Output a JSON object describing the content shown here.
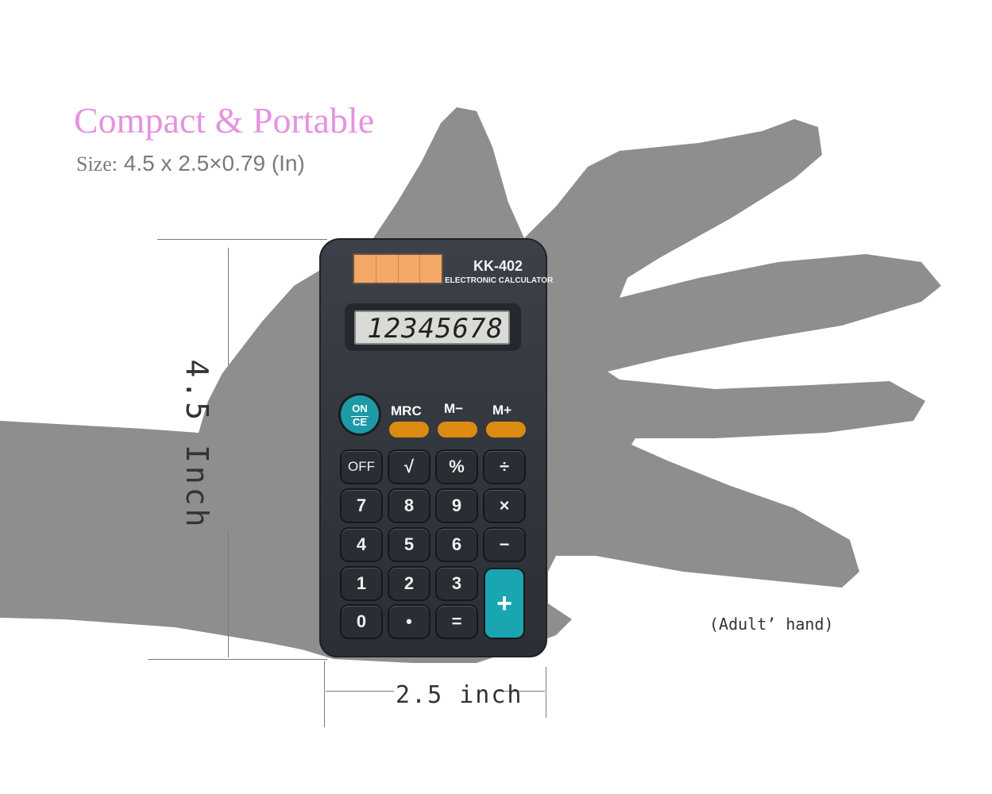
{
  "heading": {
    "title": "Compact & Portable",
    "size_label": "Size:",
    "size_value": "4.5 x 2.5×0.79 (In)"
  },
  "dimensions": {
    "height_label": "4.5 Inch",
    "width_label": "2.5 inch"
  },
  "caption": "(Adult’ hand)",
  "calculator": {
    "model": "KK-402",
    "subtitle": "ELECTRONIC CALCULATOR",
    "display": "12345678",
    "on_top": "ON",
    "on_bottom": "CE",
    "memory_labels": [
      "MRC",
      "M−",
      "M+"
    ],
    "keys": [
      [
        "OFF",
        "√",
        "%",
        "÷"
      ],
      [
        "7",
        "8",
        "9",
        "×"
      ],
      [
        "4",
        "5",
        "6",
        "−"
      ],
      [
        "1",
        "2",
        "3"
      ],
      [
        "0",
        "•",
        "="
      ]
    ],
    "plus_key": "+"
  },
  "colors": {
    "title": "#e592e0",
    "hand": "#8e8e8c",
    "calculator_body": "#353940",
    "accent_teal": "#1aa6b0",
    "memory_orange": "#dd8a12",
    "solar": "#f4a868"
  }
}
